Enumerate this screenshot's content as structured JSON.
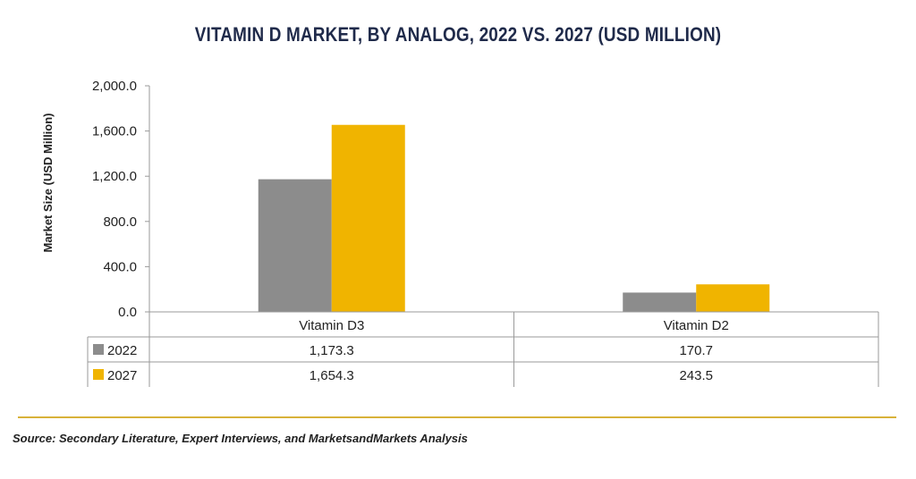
{
  "chart_data": {
    "type": "bar",
    "title": "VITAMIN D MARKET, BY ANALOG, 2022 VS. 2027 (USD MILLION)",
    "ylabel": "Market Size (USD Million)",
    "xlabel": "",
    "categories": [
      "Vitamin D3",
      "Vitamin D2"
    ],
    "series": [
      {
        "name": "2022",
        "values": [
          1173.3,
          170.7
        ],
        "labels": [
          "1,173.3",
          "170.7"
        ],
        "color": "#8c8c8c"
      },
      {
        "name": "2027",
        "values": [
          1654.3,
          243.5
        ],
        "labels": [
          "1,654.3",
          "243.5"
        ],
        "color": "#f0b400"
      }
    ],
    "ylim": [
      0,
      2000
    ],
    "yticks": [
      0,
      400,
      800,
      1200,
      1600,
      2000
    ],
    "ytick_labels": [
      "0.0",
      "400.0",
      "800.0",
      "1,200.0",
      "1,600.0",
      "2,000.0"
    ],
    "grid": false,
    "legend": "data-table",
    "data_table": true
  },
  "source": "Source: Secondary Literature, Expert Interviews, and MarketsandMarkets Analysis",
  "colors": {
    "title": "#1f2a4a",
    "rule": "#d8b23a"
  }
}
